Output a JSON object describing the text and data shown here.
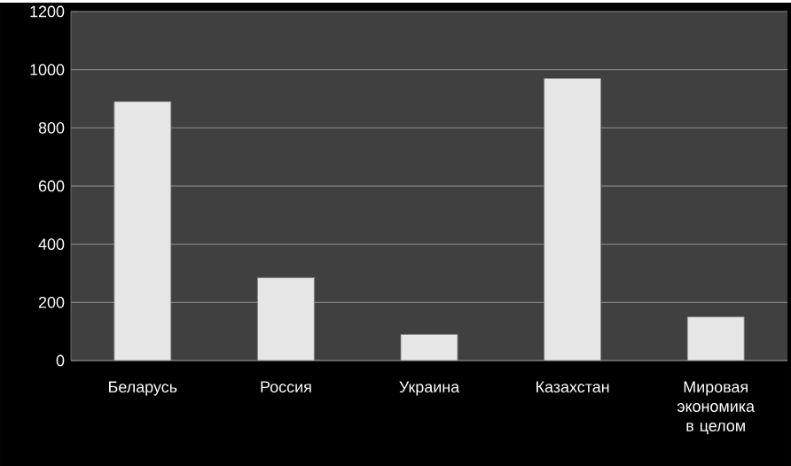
{
  "chart_data": {
    "type": "bar",
    "categories": [
      "Беларусь",
      "Россия",
      "Украина",
      "Казахстан",
      "Мировая экономика в целом"
    ],
    "values": [
      890,
      285,
      90,
      970,
      150
    ],
    "color": "#e6e6e6",
    "ylim": [
      0,
      1200
    ],
    "yticks": [
      0,
      200,
      400,
      600,
      800,
      1000,
      1200
    ],
    "grid": "y"
  }
}
